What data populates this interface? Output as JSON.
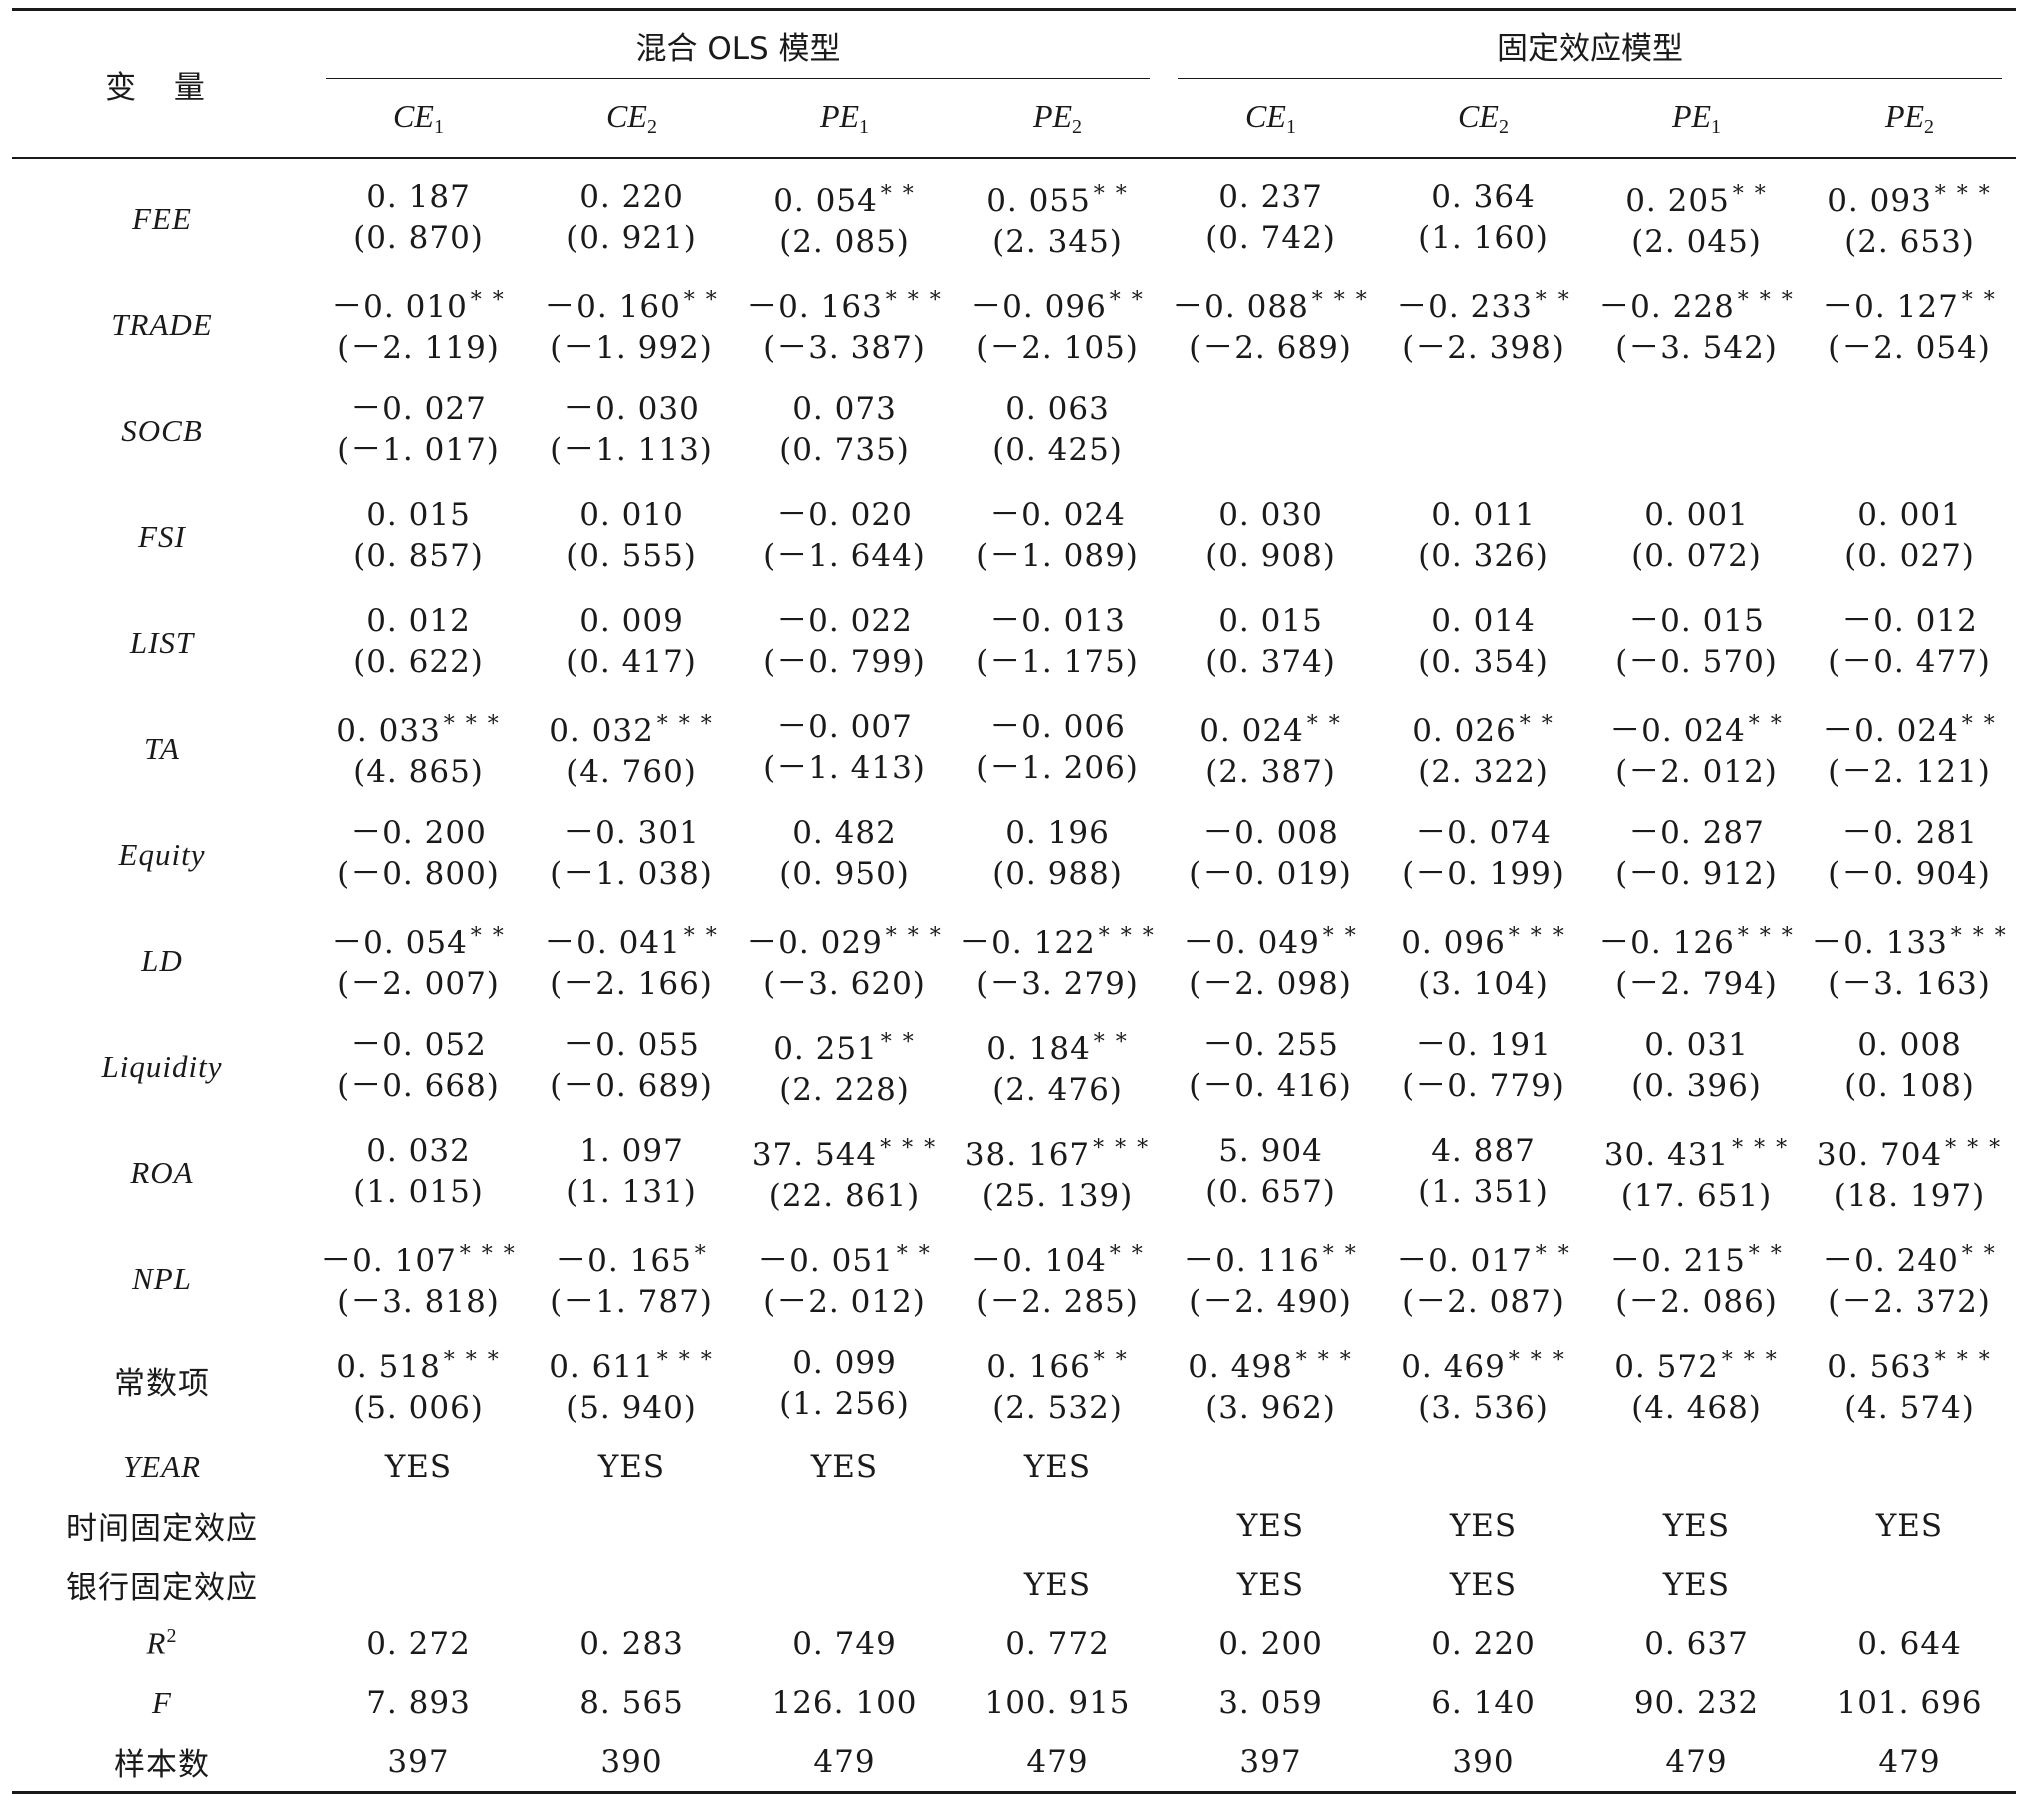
{
  "header": {
    "var_label": "变 量",
    "groups": [
      "混合 OLS 模型",
      "固定效应模型"
    ],
    "columns": [
      {
        "base": "CE",
        "sub": "1"
      },
      {
        "base": "CE",
        "sub": "2"
      },
      {
        "base": "PE",
        "sub": "1"
      },
      {
        "base": "PE",
        "sub": "2"
      },
      {
        "base": "CE",
        "sub": "1"
      },
      {
        "base": "CE",
        "sub": "2"
      },
      {
        "base": "PE",
        "sub": "1"
      },
      {
        "base": "PE",
        "sub": "2"
      }
    ]
  },
  "rows": [
    {
      "name": "FEE",
      "cjk": false,
      "cells": [
        {
          "c": "0. 187",
          "s": "",
          "t": "(0. 870)"
        },
        {
          "c": "0. 220",
          "s": "",
          "t": "(0. 921)"
        },
        {
          "c": "0. 054",
          "s": "* *",
          "t": "(2. 085)"
        },
        {
          "c": "0. 055",
          "s": "* *",
          "t": "(2. 345)"
        },
        {
          "c": "0. 237",
          "s": "",
          "t": "(0. 742)"
        },
        {
          "c": "0. 364",
          "s": "",
          "t": "(1. 160)"
        },
        {
          "c": "0. 205",
          "s": "* *",
          "t": "(2. 045)"
        },
        {
          "c": "0. 093",
          "s": "* * *",
          "t": "(2. 653)"
        }
      ]
    },
    {
      "name": "TRADE",
      "cjk": false,
      "cells": [
        {
          "c": "－0. 010",
          "s": "* *",
          "t": "(－2. 119)"
        },
        {
          "c": "－0. 160",
          "s": "* *",
          "t": "(－1. 992)"
        },
        {
          "c": "－0. 163",
          "s": "* * *",
          "t": "(－3. 387)"
        },
        {
          "c": "－0. 096",
          "s": "* *",
          "t": "(－2. 105)"
        },
        {
          "c": "－0. 088",
          "s": "* * *",
          "t": "(－2. 689)"
        },
        {
          "c": "－0. 233",
          "s": "* *",
          "t": "(－2. 398)"
        },
        {
          "c": "－0. 228",
          "s": "* * *",
          "t": "(－3. 542)"
        },
        {
          "c": "－0. 127",
          "s": "* *",
          "t": "(－2. 054)"
        }
      ]
    },
    {
      "name": "SOCB",
      "cjk": false,
      "cells": [
        {
          "c": "－0. 027",
          "s": "",
          "t": "(－1. 017)"
        },
        {
          "c": "－0. 030",
          "s": "",
          "t": "(－1. 113)"
        },
        {
          "c": "0. 073",
          "s": "",
          "t": "(0. 735)"
        },
        {
          "c": "0. 063",
          "s": "",
          "t": "(0. 425)"
        },
        {
          "c": "",
          "s": "",
          "t": ""
        },
        {
          "c": "",
          "s": "",
          "t": ""
        },
        {
          "c": "",
          "s": "",
          "t": ""
        },
        {
          "c": "",
          "s": "",
          "t": ""
        }
      ]
    },
    {
      "name": "FSI",
      "cjk": false,
      "cells": [
        {
          "c": "0. 015",
          "s": "",
          "t": "(0. 857)"
        },
        {
          "c": "0. 010",
          "s": "",
          "t": "(0. 555)"
        },
        {
          "c": "－0. 020",
          "s": "",
          "t": "(－1. 644)"
        },
        {
          "c": "－0. 024",
          "s": "",
          "t": "(－1. 089)"
        },
        {
          "c": "0. 030",
          "s": "",
          "t": "(0. 908)"
        },
        {
          "c": "0. 011",
          "s": "",
          "t": "(0. 326)"
        },
        {
          "c": "0. 001",
          "s": "",
          "t": "(0. 072)"
        },
        {
          "c": "0. 001",
          "s": "",
          "t": "(0. 027)"
        }
      ]
    },
    {
      "name": "LIST",
      "cjk": false,
      "cells": [
        {
          "c": "0. 012",
          "s": "",
          "t": "(0. 622)"
        },
        {
          "c": "0. 009",
          "s": "",
          "t": "(0. 417)"
        },
        {
          "c": "－0. 022",
          "s": "",
          "t": "(－0. 799)"
        },
        {
          "c": "－0. 013",
          "s": "",
          "t": "(－1. 175)"
        },
        {
          "c": "0. 015",
          "s": "",
          "t": "(0. 374)"
        },
        {
          "c": "0. 014",
          "s": "",
          "t": "(0. 354)"
        },
        {
          "c": "－0. 015",
          "s": "",
          "t": "(－0. 570)"
        },
        {
          "c": "－0. 012",
          "s": "",
          "t": "(－0. 477)"
        }
      ]
    },
    {
      "name": "TA",
      "cjk": false,
      "cells": [
        {
          "c": "0. 033",
          "s": "* * *",
          "t": "(4. 865)"
        },
        {
          "c": "0. 032",
          "s": "* * *",
          "t": "(4. 760)"
        },
        {
          "c": "－0. 007",
          "s": "",
          "t": "(－1. 413)"
        },
        {
          "c": "－0. 006",
          "s": "",
          "t": "(－1. 206)"
        },
        {
          "c": "0. 024",
          "s": "* *",
          "t": "(2. 387)"
        },
        {
          "c": "0. 026",
          "s": "* *",
          "t": "(2. 322)"
        },
        {
          "c": "－0. 024",
          "s": "* *",
          "t": "(－2. 012)"
        },
        {
          "c": "－0. 024",
          "s": "* *",
          "t": "(－2. 121)"
        }
      ]
    },
    {
      "name": "Equity",
      "cjk": false,
      "cells": [
        {
          "c": "－0. 200",
          "s": "",
          "t": "(－0. 800)"
        },
        {
          "c": "－0. 301",
          "s": "",
          "t": "(－1. 038)"
        },
        {
          "c": "0. 482",
          "s": "",
          "t": "(0. 950)"
        },
        {
          "c": "0. 196",
          "s": "",
          "t": "(0. 988)"
        },
        {
          "c": "－0. 008",
          "s": "",
          "t": "(－0. 019)"
        },
        {
          "c": "－0. 074",
          "s": "",
          "t": "(－0. 199)"
        },
        {
          "c": "－0. 287",
          "s": "",
          "t": "(－0. 912)"
        },
        {
          "c": "－0. 281",
          "s": "",
          "t": "(－0. 904)"
        }
      ]
    },
    {
      "name": "LD",
      "cjk": false,
      "cells": [
        {
          "c": "－0. 054",
          "s": "* *",
          "t": "(－2. 007)"
        },
        {
          "c": "－0. 041",
          "s": "* *",
          "t": "(－2. 166)"
        },
        {
          "c": "－0. 029",
          "s": "* * *",
          "t": "(－3. 620)"
        },
        {
          "c": "－0. 122",
          "s": "* * *",
          "t": "(－3. 279)"
        },
        {
          "c": "－0. 049",
          "s": "* *",
          "t": "(－2. 098)"
        },
        {
          "c": "0. 096",
          "s": "* * *",
          "t": "(3. 104)"
        },
        {
          "c": "－0. 126",
          "s": "* * *",
          "t": "(－2. 794)"
        },
        {
          "c": "－0. 133",
          "s": "* * *",
          "t": "(－3. 163)"
        }
      ]
    },
    {
      "name": "Liquidity",
      "cjk": false,
      "cells": [
        {
          "c": "－0. 052",
          "s": "",
          "t": "(－0. 668)"
        },
        {
          "c": "－0. 055",
          "s": "",
          "t": "(－0. 689)"
        },
        {
          "c": "0. 251",
          "s": "* *",
          "t": "(2. 228)"
        },
        {
          "c": "0. 184",
          "s": "* *",
          "t": "(2. 476)"
        },
        {
          "c": "－0. 255",
          "s": "",
          "t": "(－0. 416)"
        },
        {
          "c": "－0. 191",
          "s": "",
          "t": "(－0. 779)"
        },
        {
          "c": "0. 031",
          "s": "",
          "t": "(0. 396)"
        },
        {
          "c": "0. 008",
          "s": "",
          "t": "(0. 108)"
        }
      ]
    },
    {
      "name": "ROA",
      "cjk": false,
      "cells": [
        {
          "c": "0. 032",
          "s": "",
          "t": "(1. 015)"
        },
        {
          "c": "1. 097",
          "s": "",
          "t": "(1. 131)"
        },
        {
          "c": "37. 544",
          "s": "* * *",
          "t": "(22. 861)"
        },
        {
          "c": "38. 167",
          "s": "* * *",
          "t": "(25. 139)"
        },
        {
          "c": "5. 904",
          "s": "",
          "t": "(0. 657)"
        },
        {
          "c": "4. 887",
          "s": "",
          "t": "(1. 351)"
        },
        {
          "c": "30. 431",
          "s": "* * *",
          "t": "(17. 651)"
        },
        {
          "c": "30. 704",
          "s": "* * *",
          "t": "(18. 197)"
        }
      ]
    },
    {
      "name": "NPL",
      "cjk": false,
      "cells": [
        {
          "c": "－0. 107",
          "s": "* * *",
          "t": "(－3. 818)"
        },
        {
          "c": "－0. 165",
          "s": "*",
          "t": "(－1. 787)"
        },
        {
          "c": "－0. 051",
          "s": "* *",
          "t": "(－2. 012)"
        },
        {
          "c": "－0. 104",
          "s": "* *",
          "t": "(－2. 285)"
        },
        {
          "c": "－0. 116",
          "s": "* *",
          "t": "(－2. 490)"
        },
        {
          "c": "－0. 017",
          "s": "* *",
          "t": "(－2. 087)"
        },
        {
          "c": "－0. 215",
          "s": "* *",
          "t": "(－2. 086)"
        },
        {
          "c": "－0. 240",
          "s": "* *",
          "t": "(－2. 372)"
        }
      ]
    },
    {
      "name": "常数项",
      "cjk": true,
      "cells": [
        {
          "c": "0. 518",
          "s": "* * *",
          "t": "(5. 006)"
        },
        {
          "c": "0. 611",
          "s": "* * *",
          "t": "(5. 940)"
        },
        {
          "c": "0. 099",
          "s": "",
          "t": "(1. 256)"
        },
        {
          "c": "0. 166",
          "s": "* *",
          "t": "(2. 532)"
        },
        {
          "c": "0. 498",
          "s": "* * *",
          "t": "(3. 962)"
        },
        {
          "c": "0. 469",
          "s": "* * *",
          "t": "(3. 536)"
        },
        {
          "c": "0. 572",
          "s": "* * *",
          "t": "(4. 468)"
        },
        {
          "c": "0. 563",
          "s": "* * *",
          "t": "(4. 574)"
        }
      ]
    }
  ],
  "info_rows": [
    {
      "name": "YEAR",
      "cjk": false,
      "values": [
        "YES",
        "YES",
        "YES",
        "YES",
        "",
        "",
        "",
        ""
      ]
    },
    {
      "name": "时间固定效应",
      "cjk": true,
      "values": [
        "",
        "",
        "",
        "",
        "YES",
        "YES",
        "YES",
        "YES"
      ]
    },
    {
      "name": "银行固定效应",
      "cjk": true,
      "values": [
        "",
        "",
        "",
        "YES",
        "YES",
        "YES",
        "YES",
        ""
      ]
    },
    {
      "name": "R",
      "sup": "2",
      "cjk": false,
      "values": [
        "0. 272",
        "0. 283",
        "0. 749",
        "0. 772",
        "0. 200",
        "0. 220",
        "0. 637",
        "0. 644"
      ]
    },
    {
      "name": "F",
      "cjk": false,
      "values": [
        "7. 893",
        "8. 565",
        "126. 100",
        "100. 915",
        "3. 059",
        "6. 140",
        "90. 232",
        "101. 696"
      ]
    },
    {
      "name": "样本数",
      "cjk": true,
      "values": [
        "397",
        "390",
        "479",
        "479",
        "397",
        "390",
        "479",
        "479"
      ]
    }
  ]
}
